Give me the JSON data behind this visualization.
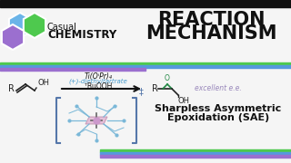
{
  "bg_color": "#f5f5f5",
  "top_bar_color": "#111111",
  "bottom_bar_color": "#111111",
  "title_text1": "REACTION",
  "title_text2": "MECHANISM",
  "title_color": "#111111",
  "logo_hex_blue": "#6ab4e8",
  "logo_hex_green": "#4ec94e",
  "logo_hex_purple": "#9b6fcf",
  "casual_text": "Casual",
  "chemistry_text": "CHEMISTRY",
  "logo_text_color": "#111111",
  "line_green": "#4ec94e",
  "line_blue": "#5599dd",
  "line_purple": "#9b6fcf",
  "reagent1": "Ti(OⁱPr)₄",
  "reagent2": "(+)-diethyltartrate",
  "reagent3": "ᵀBuOOH",
  "reagent1_color": "#111111",
  "reagent2_color": "#4499cc",
  "reagent3_color": "#111111",
  "arrow_color": "#111111",
  "product_label": "excellent e.e.",
  "product_label_color": "#9988bb",
  "subtitle1": "Sharpless Asymmetric",
  "subtitle2": "Epoxidation (SAE)",
  "subtitle_color": "#111111",
  "complex_line_color": "#7bb8d8",
  "complex_center_color": "#cc99cc",
  "bracket_color": "#5577aa",
  "epoxide_color": "#228844",
  "mol_color": "#222222"
}
